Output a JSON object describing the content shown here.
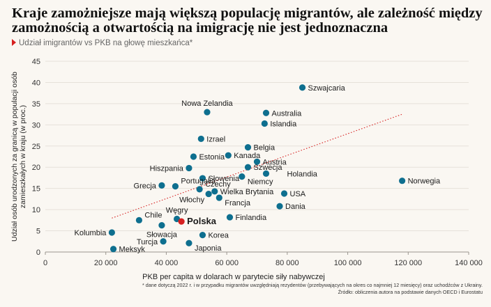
{
  "header": {
    "title": "Kraje zamożniejsze mają większą populację migrantów, ale zależność między zamożnością a otwartością na imigrację nie jest jednoznaczna",
    "subtitle": "Udział imigrantów vs PKB na głowę mieszkańca*"
  },
  "footnote": {
    "line1": "* dane dotyczą 2022 r. i w przypadku migrantów uwzględniają rezydentów (przebywających na okres co najmniej 12 miesięcy) oraz uchodźców z Ukrainy.",
    "line2": "Źródło: obliczenia autora na podstawie danych OECD i Eurostatu"
  },
  "colors": {
    "point": "#0e6f8f",
    "highlight": "#d62020",
    "trend": "#d62020",
    "grid": "#e6e1da"
  },
  "chart_data": {
    "type": "scatter",
    "xlabel": "PKB per capita w dolarach w parytecie siły nabywczej",
    "ylabel": "Udział osób urodzonych za granicą w populacji osób zamieszkałych w kraju (w proc.)",
    "xlim": [
      0,
      140000
    ],
    "ylim": [
      0,
      45
    ],
    "xticks": [
      0,
      20000,
      40000,
      60000,
      80000,
      100000,
      120000,
      140000
    ],
    "xtick_labels": [
      "0",
      "20 000",
      "40 000",
      "60 000",
      "80 000",
      "100 000",
      "120 000",
      "140 000"
    ],
    "yticks": [
      0,
      5,
      10,
      15,
      20,
      25,
      30,
      35,
      40,
      45
    ],
    "ytick_labels": [
      "0",
      "5",
      "10",
      "15",
      "20",
      "25",
      "30",
      "35",
      "40",
      "45"
    ],
    "grid": "horizontal",
    "trendline": {
      "style": "dotted",
      "from": [
        22000,
        8
      ],
      "to": [
        118000,
        32.5
      ]
    },
    "points": [
      {
        "label": "Szwajcaria",
        "x": 85000,
        "y": 38.8,
        "anchor": "right"
      },
      {
        "label": "Nowa Zelandia",
        "x": 53500,
        "y": 33.0,
        "anchor": "above"
      },
      {
        "label": "Australia",
        "x": 73000,
        "y": 32.8,
        "anchor": "right"
      },
      {
        "label": "Islandia",
        "x": 72500,
        "y": 30.3,
        "anchor": "right"
      },
      {
        "label": "Izrael",
        "x": 51500,
        "y": 26.7,
        "anchor": "right"
      },
      {
        "label": "Belgia",
        "x": 67000,
        "y": 24.7,
        "anchor": "right"
      },
      {
        "label": "Kanada",
        "x": 60500,
        "y": 22.8,
        "anchor": "right"
      },
      {
        "label": "Estonia",
        "x": 49000,
        "y": 22.5,
        "anchor": "right"
      },
      {
        "label": "Austria",
        "x": 70000,
        "y": 21.3,
        "anchor": "right"
      },
      {
        "label": "Hiszpania",
        "x": 47500,
        "y": 19.8,
        "anchor": "left"
      },
      {
        "label": "Szwecja",
        "x": 67000,
        "y": 20.0,
        "anchor": "right"
      },
      {
        "label": "Holandia",
        "x": 73000,
        "y": 18.5,
        "anchor": "right-far"
      },
      {
        "label": "Portugalia",
        "x": 43000,
        "y": 15.5,
        "anchor": "right-up"
      },
      {
        "label": "Słowenia",
        "x": 52000,
        "y": 17.4,
        "anchor": "right"
      },
      {
        "label": "Niemcy",
        "x": 65000,
        "y": 17.8,
        "anchor": "right-down"
      },
      {
        "label": "Grecja",
        "x": 38500,
        "y": 15.7,
        "anchor": "left"
      },
      {
        "label": "Czechy",
        "x": 51000,
        "y": 14.8,
        "anchor": "right-up"
      },
      {
        "label": "Wielka Brytania",
        "x": 56000,
        "y": 14.3,
        "anchor": "right"
      },
      {
        "label": "Włochy",
        "x": 54000,
        "y": 13.7,
        "anchor": "left-down"
      },
      {
        "label": "Francja",
        "x": 57500,
        "y": 12.8,
        "anchor": "right-down"
      },
      {
        "label": "USA",
        "x": 79000,
        "y": 13.8,
        "anchor": "right"
      },
      {
        "label": "Norwegia",
        "x": 118000,
        "y": 16.8,
        "anchor": "right"
      },
      {
        "label": "Dania",
        "x": 77500,
        "y": 10.8,
        "anchor": "right"
      },
      {
        "label": "Finlandia",
        "x": 61000,
        "y": 8.2,
        "anchor": "right"
      },
      {
        "label": "Chile",
        "x": 31000,
        "y": 7.5,
        "anchor": "right-up"
      },
      {
        "label": "Węgry",
        "x": 43500,
        "y": 7.8,
        "anchor": "above"
      },
      {
        "label": "Polska",
        "x": 45000,
        "y": 7.2,
        "anchor": "right",
        "highlight": true
      },
      {
        "label": "Słowacja",
        "x": 38500,
        "y": 6.3,
        "anchor": "below"
      },
      {
        "label": "Kolumbia",
        "x": 22000,
        "y": 4.6,
        "anchor": "left"
      },
      {
        "label": "Korea",
        "x": 52000,
        "y": 4.0,
        "anchor": "right"
      },
      {
        "label": "Turcja",
        "x": 39000,
        "y": 2.5,
        "anchor": "left"
      },
      {
        "label": "Japonia",
        "x": 47500,
        "y": 2.1,
        "anchor": "right-down"
      },
      {
        "label": "Meksyk",
        "x": 22500,
        "y": 0.7,
        "anchor": "right"
      }
    ]
  }
}
